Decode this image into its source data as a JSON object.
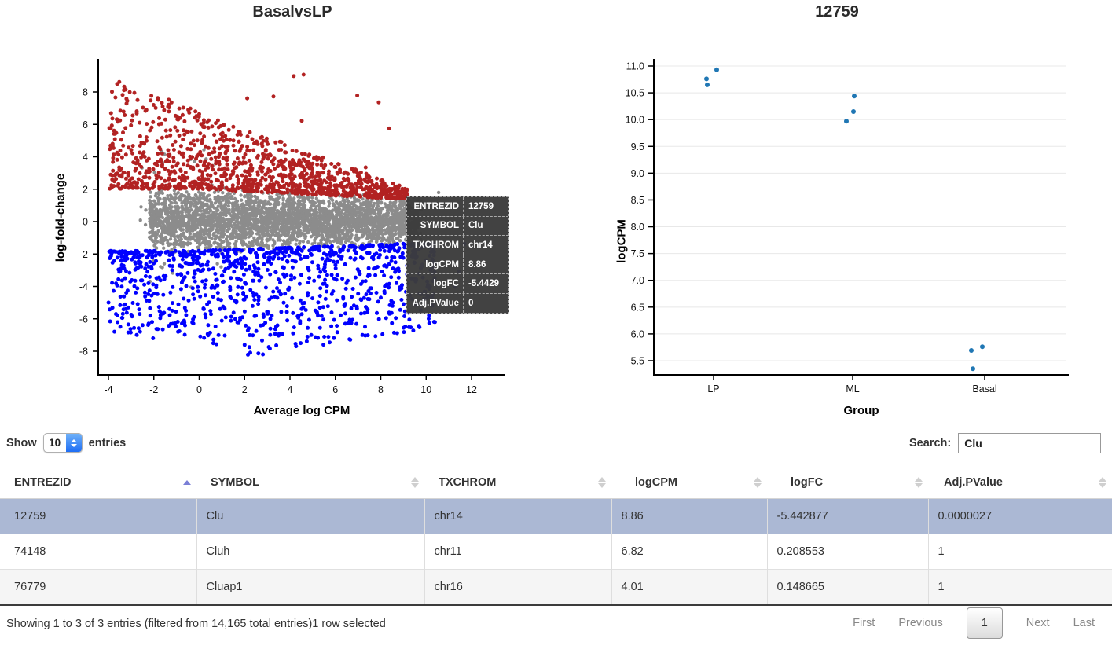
{
  "page": {
    "background": "#ffffff"
  },
  "tooltip": {
    "rows": [
      {
        "label": "ENTREZID",
        "value": "12759"
      },
      {
        "label": "SYMBOL",
        "value": "Clu"
      },
      {
        "label": "TXCHROM",
        "value": "chr14"
      },
      {
        "label": "logCPM",
        "value": "8.86"
      },
      {
        "label": "logFC",
        "value": "-5.4429"
      },
      {
        "label": "Adj.PValue",
        "value": "0"
      }
    ]
  },
  "controls": {
    "show_label": "Show",
    "page_size": "10",
    "entries_label": "entries",
    "search_label": "Search:",
    "search_value": "Clu"
  },
  "table": {
    "columns": [
      {
        "label": "ENTREZID",
        "sort": "asc"
      },
      {
        "label": "SYMBOL",
        "sort": "none"
      },
      {
        "label": "TXCHROM",
        "sort": "none"
      },
      {
        "label": "logCPM",
        "sort": "none"
      },
      {
        "label": "logFC",
        "sort": "none"
      },
      {
        "label": "Adj.PValue",
        "sort": "none"
      }
    ],
    "rows": [
      {
        "selected": true,
        "cells": [
          "12759",
          "Clu",
          "chr14",
          "8.86",
          "-5.442877",
          "0.0000027"
        ]
      },
      {
        "selected": false,
        "cells": [
          "74148",
          "Cluh",
          "chr11",
          "6.82",
          "0.208553",
          "1"
        ]
      },
      {
        "selected": false,
        "cells": [
          "76779",
          "Cluap1",
          "chr16",
          "4.01",
          "0.148665",
          "1"
        ]
      }
    ],
    "selected_row_color": "#abb8d4"
  },
  "footer": {
    "info": "Showing 1 to 3 of 3 entries (filtered from 14,165 total entries)",
    "selected_info": "1 row selected",
    "pagination": {
      "first": "First",
      "previous": "Previous",
      "page": "1",
      "next": "Next",
      "last": "Last"
    }
  },
  "chart_data": [
    {
      "type": "scatter",
      "title": "BasalvsLP",
      "xlabel": "Average log CPM",
      "ylabel": "log-fold-change",
      "xlim": [
        -4.5,
        13.4
      ],
      "ylim": [
        -9.8,
        10.0
      ],
      "xticks": [
        -4,
        -2,
        0,
        2,
        4,
        6,
        8,
        10,
        12
      ],
      "yticks": [
        8,
        6,
        4,
        2,
        0,
        -2,
        -4,
        -6,
        -8
      ],
      "grid": false,
      "legend": "none",
      "series": [
        {
          "name": "notsig",
          "color": "#8c8c8c",
          "approx_count": 3300,
          "x_range": [
            -2.6,
            10.6
          ],
          "y_range": [
            -2.5,
            2.5
          ]
        },
        {
          "name": "up",
          "color": "#b22222",
          "approx_count": 1150,
          "x_range": [
            -3.9,
            9.3
          ],
          "y_range": [
            1.4,
            9.3
          ]
        },
        {
          "name": "down",
          "color": "#0000ff",
          "approx_count": 1060,
          "x_range": [
            -3.9,
            11.8
          ],
          "y_range": [
            -9.6,
            -1.35
          ]
        }
      ],
      "highlighted_point": {
        "ENTREZID": "12759",
        "SYMBOL": "Clu",
        "TXCHROM": "chr14",
        "logCPM": 8.86,
        "logFC": -5.4429,
        "Adj.PValue": 0
      }
    },
    {
      "type": "scatter",
      "title": "12759",
      "xlabel": "Group",
      "ylabel": "logCPM",
      "categories": [
        "LP",
        "ML",
        "Basal"
      ],
      "yticks": [
        "11.0",
        "10.5",
        "10.0",
        "9.5",
        "9.0",
        "8.5",
        "8.0",
        "7.5",
        "7.0",
        "6.5",
        "6.0",
        "5.5"
      ],
      "ylim": [
        5.2,
        11.1
      ],
      "grid": true,
      "point_color": "#2077b4",
      "points": [
        {
          "group": "LP",
          "logCPM": 10.93,
          "dx": 4
        },
        {
          "group": "LP",
          "logCPM": 10.76,
          "dx": -9
        },
        {
          "group": "LP",
          "logCPM": 10.65,
          "dx": -8
        },
        {
          "group": "ML",
          "logCPM": 10.44,
          "dx": 2
        },
        {
          "group": "ML",
          "logCPM": 10.15,
          "dx": 1
        },
        {
          "group": "ML",
          "logCPM": 9.97,
          "dx": -8
        },
        {
          "group": "Basal",
          "logCPM": 5.76,
          "dx": -3
        },
        {
          "group": "Basal",
          "logCPM": 5.69,
          "dx": -17
        },
        {
          "group": "Basal",
          "logCPM": 5.35,
          "dx": -15
        }
      ]
    }
  ]
}
